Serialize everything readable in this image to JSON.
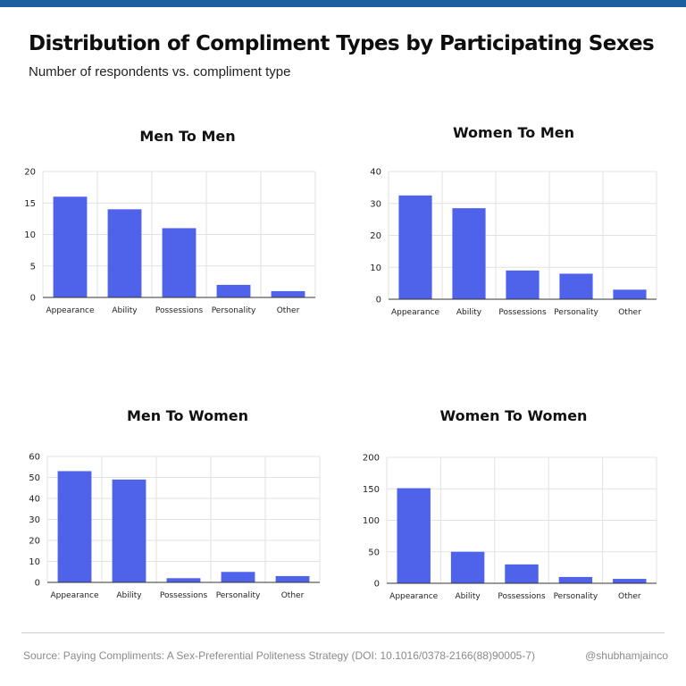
{
  "title": "Distribution of Compliment Types by Participating Sexes",
  "subtitle": "Number of respondents vs. compliment type",
  "footer": {
    "source": "Source: Paying Compliments: A Sex-Preferential Politeness Strategy (DOI: 10.1016/0378-2166(88)90005-7)",
    "handle": "@shubhamjainco"
  },
  "colors": {
    "bar": "#4f63ea",
    "grid": "#e2e2e2",
    "axis": "#333333",
    "accent": "#1b5fa0"
  },
  "chart_data": [
    {
      "type": "bar",
      "title": "Men To Men",
      "categories": [
        "Appearance",
        "Ability",
        "Possessions",
        "Personality",
        "Other"
      ],
      "values": [
        16,
        14,
        11,
        2,
        1
      ],
      "ylim": [
        0,
        20
      ],
      "yticks": [
        0,
        5,
        10,
        15,
        20
      ],
      "grid": true
    },
    {
      "type": "bar",
      "title": "Women To Men",
      "categories": [
        "Appearance",
        "Ability",
        "Possessions",
        "Personality",
        "Other"
      ],
      "values": [
        32.5,
        28.5,
        9,
        8,
        3
      ],
      "ylim": [
        0,
        40
      ],
      "yticks": [
        0,
        10,
        20,
        30,
        40
      ],
      "grid": true
    },
    {
      "type": "bar",
      "title": "Men To Women",
      "categories": [
        "Appearance",
        "Ability",
        "Possessions",
        "Personality",
        "Other"
      ],
      "values": [
        53,
        49,
        2,
        5,
        3
      ],
      "ylim": [
        0,
        60
      ],
      "yticks": [
        0,
        10,
        20,
        30,
        40,
        50,
        60
      ],
      "grid": true
    },
    {
      "type": "bar",
      "title": "Women To Women",
      "categories": [
        "Appearance",
        "Ability",
        "Possessions",
        "Personality",
        "Other"
      ],
      "values": [
        151,
        50,
        30,
        10,
        7
      ],
      "ylim": [
        0,
        200
      ],
      "yticks": [
        0,
        50,
        100,
        150,
        200
      ],
      "grid": true
    }
  ]
}
